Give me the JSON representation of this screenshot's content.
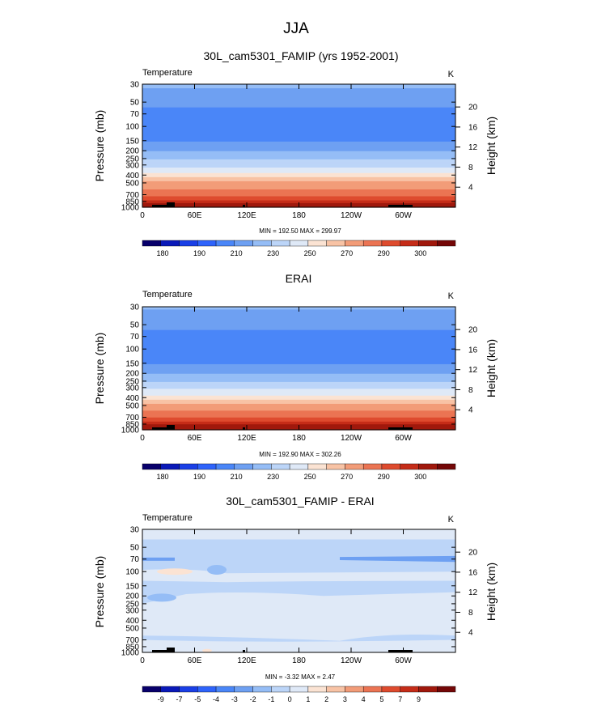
{
  "page_title": "JJA",
  "colors": {
    "fill_scale": [
      "#08006b",
      "#0a19b8",
      "#1a3fe6",
      "#2e63fb",
      "#4a86f8",
      "#6ea0f2",
      "#95bdf6",
      "#bcd5f8",
      "#dfe9f7",
      "#fbe3d3",
      "#f8c3a5",
      "#f29c78",
      "#eb7453",
      "#de4b2e",
      "#c52c18",
      "#a0180c",
      "#740707"
    ],
    "diff_fill_scale": [
      "#08006b",
      "#0a19b8",
      "#1a3fe6",
      "#2e63fb",
      "#4a86f8",
      "#6ea0f2",
      "#95bdf6",
      "#bcd5f8",
      "#dfe9f7",
      "#fbe3d3",
      "#f8c3a5",
      "#f29c78",
      "#eb7453",
      "#de4b2e",
      "#c52c18",
      "#a0180c",
      "#740707"
    ],
    "topography": "#000000"
  },
  "chart_data": [
    {
      "type": "heatmap",
      "title": "30L_cam5301_FAMIP (yrs 1952-2001)",
      "left_label": "Temperature",
      "right_label": "K",
      "ylabel": "Pressure (mb)",
      "y2label": "Height (km)",
      "x_ticks": [
        "0",
        "60E",
        "120E",
        "180",
        "120W",
        "60W"
      ],
      "x_tick_lon": [
        0,
        60,
        120,
        180,
        240,
        300
      ],
      "xlim": [
        0,
        360
      ],
      "y_ticks": [
        "30",
        "50",
        "70",
        "100",
        "150",
        "200",
        "250",
        "300",
        "400",
        "500",
        "700",
        "850",
        "1000"
      ],
      "y_tick_p": [
        30,
        50,
        70,
        100,
        150,
        200,
        250,
        300,
        400,
        500,
        700,
        850,
        1000
      ],
      "ylim": [
        30,
        1000
      ],
      "y_scale": "log (inverted)",
      "y2_ticks": [
        "20",
        "16",
        "12",
        "8",
        "4"
      ],
      "y2_tick_km": [
        20,
        16,
        12,
        8,
        4
      ],
      "stats": "MIN = 192.50  MAX = 299.97",
      "min": 192.5,
      "max": 299.97,
      "profile": {
        "pressure": [
          30,
          50,
          70,
          100,
          150,
          200,
          250,
          300,
          400,
          500,
          700,
          850,
          1000
        ],
        "temperature": [
          222,
          213,
          206,
          200,
          209,
          219,
          228,
          237,
          252,
          262,
          278,
          287,
          296
        ]
      },
      "colorbar_labels": [
        "180",
        "190",
        "210",
        "230",
        "250",
        "270",
        "290",
        "300"
      ]
    },
    {
      "type": "heatmap",
      "title": "ERAI",
      "left_label": "Temperature",
      "right_label": "K",
      "ylabel": "Pressure (mb)",
      "y2label": "Height (km)",
      "x_ticks": [
        "0",
        "60E",
        "120E",
        "180",
        "120W",
        "60W"
      ],
      "x_tick_lon": [
        0,
        60,
        120,
        180,
        240,
        300
      ],
      "xlim": [
        0,
        360
      ],
      "y_ticks": [
        "30",
        "50",
        "70",
        "100",
        "150",
        "200",
        "250",
        "300",
        "400",
        "500",
        "700",
        "850",
        "1000"
      ],
      "y_tick_p": [
        30,
        50,
        70,
        100,
        150,
        200,
        250,
        300,
        400,
        500,
        700,
        850,
        1000
      ],
      "ylim": [
        30,
        1000
      ],
      "y_scale": "log (inverted)",
      "y2_ticks": [
        "20",
        "16",
        "12",
        "8",
        "4"
      ],
      "y2_tick_km": [
        20,
        16,
        12,
        8,
        4
      ],
      "stats": "MIN = 192.90  MAX = 302.26",
      "min": 192.9,
      "max": 302.26,
      "profile": {
        "pressure": [
          30,
          50,
          70,
          100,
          150,
          200,
          250,
          300,
          400,
          500,
          700,
          850,
          1000
        ],
        "temperature": [
          221,
          213,
          207,
          201,
          209,
          219,
          228,
          238,
          252,
          263,
          279,
          289,
          298
        ]
      },
      "colorbar_labels": [
        "180",
        "190",
        "210",
        "230",
        "250",
        "270",
        "290",
        "300"
      ]
    },
    {
      "type": "heatmap",
      "title": "30L_cam5301_FAMIP - ERAI",
      "left_label": "Temperature",
      "right_label": "K",
      "ylabel": "Pressure (mb)",
      "y2label": "Height (km)",
      "x_ticks": [
        "0",
        "60E",
        "120E",
        "180",
        "120W",
        "60W"
      ],
      "x_tick_lon": [
        0,
        60,
        120,
        180,
        240,
        300
      ],
      "xlim": [
        0,
        360
      ],
      "y_ticks": [
        "30",
        "50",
        "70",
        "100",
        "150",
        "200",
        "250",
        "300",
        "400",
        "500",
        "700",
        "850",
        "1000"
      ],
      "y_tick_p": [
        30,
        50,
        70,
        100,
        150,
        200,
        250,
        300,
        400,
        500,
        700,
        850,
        1000
      ],
      "ylim": [
        30,
        1000
      ],
      "y_scale": "log (inverted)",
      "y2_ticks": [
        "20",
        "16",
        "12",
        "8",
        "4"
      ],
      "y2_tick_km": [
        20,
        16,
        12,
        8,
        4
      ],
      "stats": "MIN = -3.32  MAX =  2.47",
      "min": -3.32,
      "max": 2.47,
      "colorbar_labels": [
        "-9",
        "-7",
        "-5",
        "-4",
        "-3",
        "-2",
        "-1",
        "0",
        "1",
        "2",
        "3",
        "4",
        "5",
        "7",
        "9"
      ]
    }
  ]
}
